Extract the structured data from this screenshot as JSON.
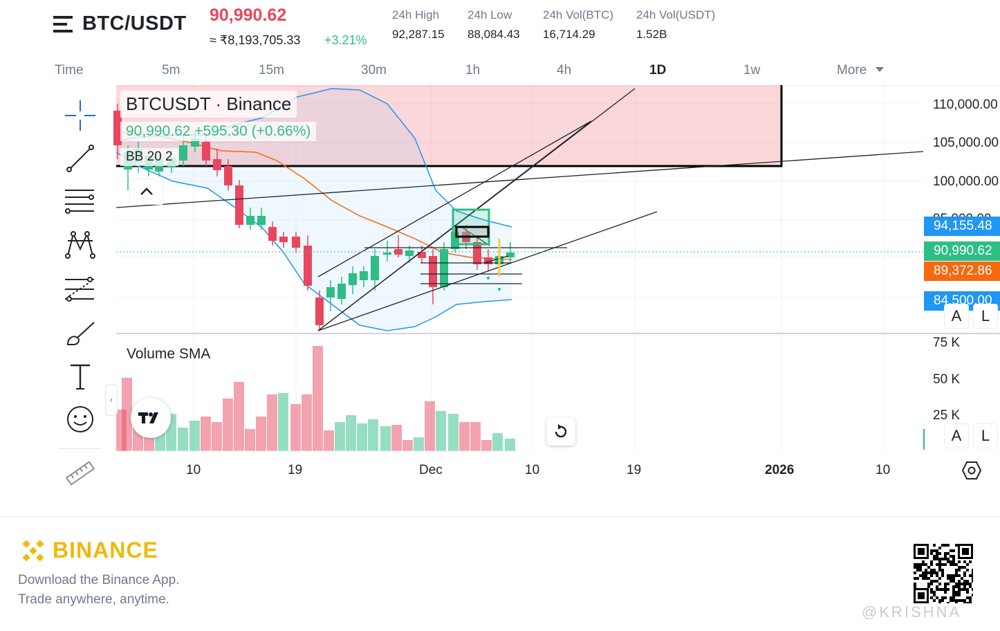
{
  "header": {
    "pair": "BTC/USDT",
    "price": "90,990.62",
    "inr_price": "≈ ₹8,193,705.33",
    "change_pct": "+3.21%",
    "stats": [
      {
        "label": "24h High",
        "value": "92,287.15"
      },
      {
        "label": "24h Low",
        "value": "88,084.43"
      },
      {
        "label": "24h Vol(BTC)",
        "value": "16,714.29"
      },
      {
        "label": "24h Vol(USDT)",
        "value": "1.52B"
      }
    ]
  },
  "timeframes": {
    "items": [
      "Time",
      "5m",
      "15m",
      "30m",
      "1h",
      "4h",
      "1D",
      "1w",
      "More"
    ],
    "active": "1D"
  },
  "legend": {
    "symbol": "BTCUSDT · Binance",
    "price_line": "90,990.62  +595.30 (+0.66%)",
    "indicator": "BB 20 2"
  },
  "volume_title": "Volume SMA",
  "price_axis": {
    "labels": [
      "110,000.00",
      "105,000.00",
      "100,000.00",
      "95,000.00"
    ],
    "tags": [
      {
        "text": "94,155.48",
        "color": "#2196f3"
      },
      {
        "text": "90,990.62",
        "color": "#2ebd85"
      },
      {
        "text": "89,372.86",
        "color": "#f6690e"
      },
      {
        "text": "84,500.00",
        "color": "#2196f3"
      }
    ],
    "auto": "A",
    "log": "L"
  },
  "volume_axis": {
    "labels": [
      "75 K",
      "50 K",
      "25 K"
    ],
    "auto": "A",
    "log": "L"
  },
  "time_axis": {
    "labels": [
      "10",
      "19",
      "Dec",
      "10",
      "19",
      "2026",
      "10"
    ]
  },
  "toolbar": {
    "tools": [
      "crosshair-icon",
      "trendline-icon",
      "fib-icon",
      "pattern-icon",
      "prediction-icon",
      "brush-icon",
      "text-icon",
      "emoji-icon",
      "ruler-icon"
    ]
  },
  "colors": {
    "up": "#2ebd85",
    "down": "#e8475f",
    "bb_band": "#2196f3",
    "bb_basis": "#f6690e",
    "brand": "#f0b90b"
  },
  "footer": {
    "brand": "BINANCE",
    "line1": "Download the Binance App.",
    "line2": "Trade anywhere, anytime.",
    "watermark": "@KRISHNA"
  }
}
